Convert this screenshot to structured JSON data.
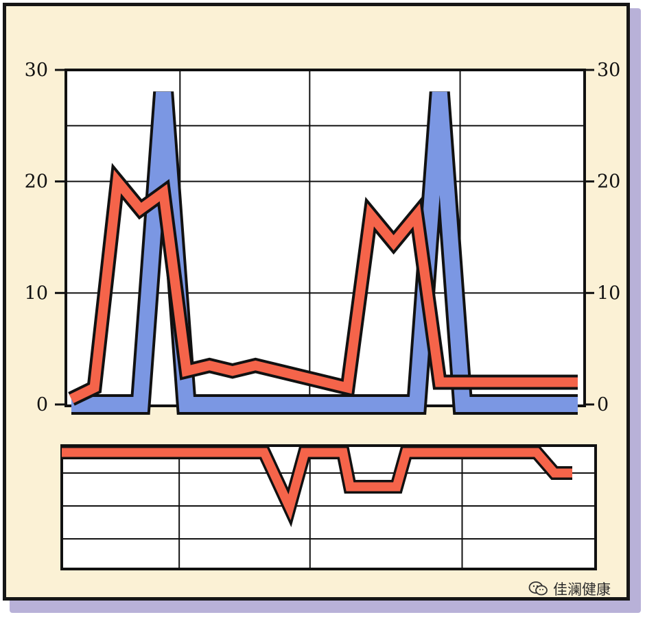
{
  "chart_data": [
    {
      "type": "line",
      "x": [
        0,
        1,
        2,
        3,
        4,
        5,
        6,
        7,
        8,
        9,
        10,
        11,
        12,
        13,
        14,
        15,
        16,
        17,
        18,
        19,
        20,
        21,
        22
      ],
      "series": [
        {
          "color": "#7b97e3",
          "values": [
            0,
            0,
            0,
            0,
            28,
            0,
            0,
            0,
            0,
            0,
            0,
            0,
            0,
            0,
            0,
            0,
            28,
            0,
            0,
            0,
            0,
            0,
            0
          ]
        },
        {
          "color": "#f5644a",
          "values": [
            0.5,
            1.5,
            20,
            17.5,
            19,
            3,
            3.5,
            3,
            3.5,
            3,
            2.5,
            2,
            1.5,
            17,
            14.5,
            17,
            2,
            2,
            2,
            2,
            2,
            2,
            2
          ]
        }
      ],
      "yticks_left": [
        "0",
        "10",
        "20",
        "30"
      ],
      "yticks_right": [
        "0",
        "10",
        "20",
        "30"
      ],
      "ylim": [
        0,
        30
      ],
      "grid": true
    },
    {
      "type": "line",
      "series": [
        {
          "color": "#f5644a",
          "values": [
            0,
            0,
            0,
            0,
            -4,
            0,
            0,
            -2.5,
            -2.5,
            0,
            0,
            0,
            -1.5,
            -1.5
          ]
        }
      ],
      "grid": true
    }
  ],
  "watermark": {
    "icon": "wechat-icon",
    "text": "佳澜健康"
  }
}
